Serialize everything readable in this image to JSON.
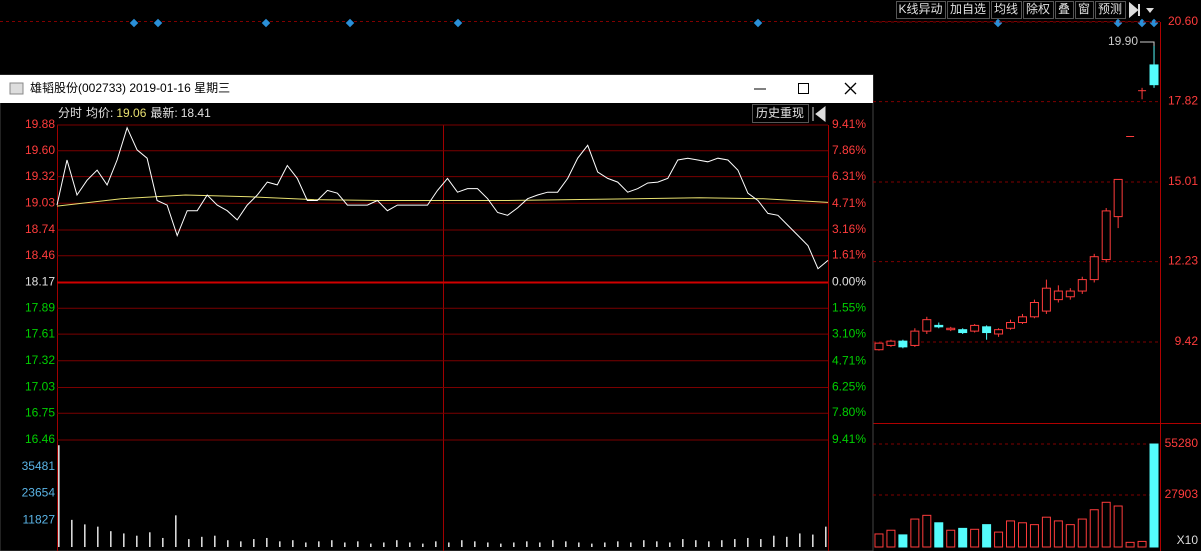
{
  "toolbar": {
    "buttons": [
      "K线异动",
      "加自选",
      "均线",
      "除权",
      "叠",
      "窗",
      "预测"
    ]
  },
  "window": {
    "title": "雄韬股份(002733) 2019-01-16 星期三",
    "mode": "分时",
    "avg_label": "均价:",
    "avg": 19.06,
    "latest_label": "最新:",
    "latest": 18.41,
    "replay_button": "历史重现"
  },
  "chart_data": [
    {
      "type": "line",
      "color": "#ffffff",
      "avg_color": "#e8e070",
      "values": [
        19.01,
        19.5,
        19.12,
        19.28,
        19.39,
        19.23,
        19.5,
        19.85,
        19.61,
        19.52,
        19.06,
        19.01,
        18.68,
        18.95,
        18.95,
        19.12,
        19.01,
        18.95,
        18.85,
        19.01,
        19.12,
        19.26,
        19.23,
        19.44,
        19.3,
        19.06,
        19.06,
        19.17,
        19.14,
        19.01,
        19.01,
        19.01,
        19.06,
        18.95,
        19.01,
        19.01,
        19.01,
        19.01,
        19.17,
        19.3,
        19.15,
        19.19,
        19.19,
        19.08,
        18.93,
        18.9,
        18.98,
        19.08,
        19.12,
        19.15,
        19.15,
        19.3,
        19.52,
        19.66,
        19.37,
        19.3,
        19.26,
        19.15,
        19.19,
        19.25,
        19.26,
        19.3,
        19.5,
        19.52,
        19.5,
        19.48,
        19.52,
        19.5,
        19.39,
        19.14,
        19.06,
        18.92,
        18.9,
        18.79,
        18.68,
        18.57,
        18.32,
        18.41
      ],
      "avg_values": [
        19.0,
        19.08,
        19.12,
        19.1,
        19.07,
        19.06,
        19.06,
        19.06,
        19.07,
        19.08,
        19.09,
        19.08,
        19.04
      ],
      "ylim": [
        16.46,
        19.88
      ],
      "yticks": [
        19.88,
        {
          "value": 19.6,
          "label": "19.60"
        },
        19.32,
        19.03,
        18.74,
        18.46,
        18.17,
        17.89,
        17.61,
        17.32,
        17.03,
        16.75,
        16.46
      ],
      "y2lim": [
        -9.41,
        9.41
      ],
      "y2ticks": [
        {
          "value": 9.41,
          "label": "9.41%"
        },
        {
          "value": 7.86,
          "label": "7.86%"
        },
        {
          "value": 6.31,
          "label": "6.31%"
        },
        {
          "value": 4.71,
          "label": "4.71%"
        },
        {
          "value": 3.16,
          "label": "3.16%"
        },
        {
          "value": 1.61,
          "label": "1.61%"
        },
        {
          "value": 0,
          "label": "0.00%"
        },
        {
          "value": -1.55,
          "label": "1.55%"
        },
        {
          "value": -3.1,
          "label": "3.10%"
        },
        {
          "value": -4.71,
          "label": "4.71%"
        },
        {
          "value": -6.25,
          "label": "6.25%"
        },
        {
          "value": -7.8,
          "label": "7.80%"
        },
        {
          "value": -9.41,
          "label": "9.41%"
        }
      ],
      "grid": true
    },
    {
      "type": "bar",
      "color": "#d8d8d8",
      "values": [
        45000,
        12000,
        10000,
        9000,
        7000,
        6000,
        5000,
        6500,
        4000,
        14000,
        3500,
        4500,
        5000,
        3000,
        2500,
        3500,
        4000,
        2500,
        3000,
        2000,
        2500,
        3000,
        2000,
        2500,
        1500,
        2000,
        3000,
        2000,
        1500,
        2500,
        2000,
        3000,
        2500,
        2000,
        1500,
        2000,
        2500,
        2000,
        3000,
        2500,
        2000,
        1500,
        2000,
        2500,
        2000,
        3000,
        2500,
        2000,
        3500,
        3000,
        2500,
        3000,
        3500,
        4000,
        3500,
        5000,
        4500,
        6000,
        5500,
        9000
      ],
      "ylim": [
        0,
        47308
      ],
      "yticks": [
        11827,
        23654,
        35481
      ]
    },
    {
      "type": "candlestick",
      "up_color": "#ff3c3c",
      "down_color": "#54fcfc",
      "open": [
        9.15,
        9.3,
        9.45,
        9.3,
        9.8,
        10.0,
        9.85,
        9.85,
        9.8,
        9.95,
        9.7,
        9.9,
        10.1,
        10.3,
        10.5,
        10.9,
        11.0,
        11.2,
        11.6,
        12.3,
        13.8,
        16.6,
        18.2,
        19.1
      ],
      "high": [
        9.4,
        9.5,
        9.5,
        9.9,
        10.3,
        10.1,
        9.95,
        9.9,
        10.05,
        10.0,
        9.9,
        10.2,
        10.4,
        10.9,
        11.6,
        11.4,
        11.3,
        11.7,
        12.5,
        14.1,
        15.1,
        16.6,
        18.3,
        19.9
      ],
      "low": [
        9.12,
        9.25,
        9.2,
        9.25,
        9.7,
        9.9,
        9.8,
        9.7,
        9.75,
        9.5,
        9.6,
        9.85,
        10.05,
        10.25,
        10.4,
        10.8,
        10.9,
        11.1,
        11.5,
        12.2,
        13.4,
        16.6,
        17.9,
        18.3
      ],
      "close": [
        9.38,
        9.45,
        9.25,
        9.8,
        10.2,
        9.95,
        9.9,
        9.75,
        10.0,
        9.75,
        9.85,
        10.1,
        10.3,
        10.8,
        11.3,
        11.2,
        11.2,
        11.6,
        12.4,
        14.0,
        15.1,
        16.6,
        18.2,
        18.41
      ],
      "ylim": [
        6.52,
        20.6
      ],
      "yticks": [
        9.42,
        12.23,
        15.01,
        17.82,
        {
          "value": 20.6,
          "label": "20.60"
        }
      ],
      "annotation": {
        "value": 19.9,
        "label": "19.90"
      },
      "grid": true
    },
    {
      "type": "bar",
      "values": [
        7000,
        9000,
        6500,
        15000,
        17000,
        13000,
        9000,
        10000,
        9500,
        12000,
        8000,
        14000,
        13000,
        12000,
        16000,
        14000,
        12000,
        15000,
        20000,
        24000,
        22000,
        2500,
        3000,
        55280
      ],
      "ylim": [
        0,
        65490
      ],
      "yticks": [
        27903,
        55280
      ],
      "unit_label": "X10",
      "grid": true
    }
  ]
}
